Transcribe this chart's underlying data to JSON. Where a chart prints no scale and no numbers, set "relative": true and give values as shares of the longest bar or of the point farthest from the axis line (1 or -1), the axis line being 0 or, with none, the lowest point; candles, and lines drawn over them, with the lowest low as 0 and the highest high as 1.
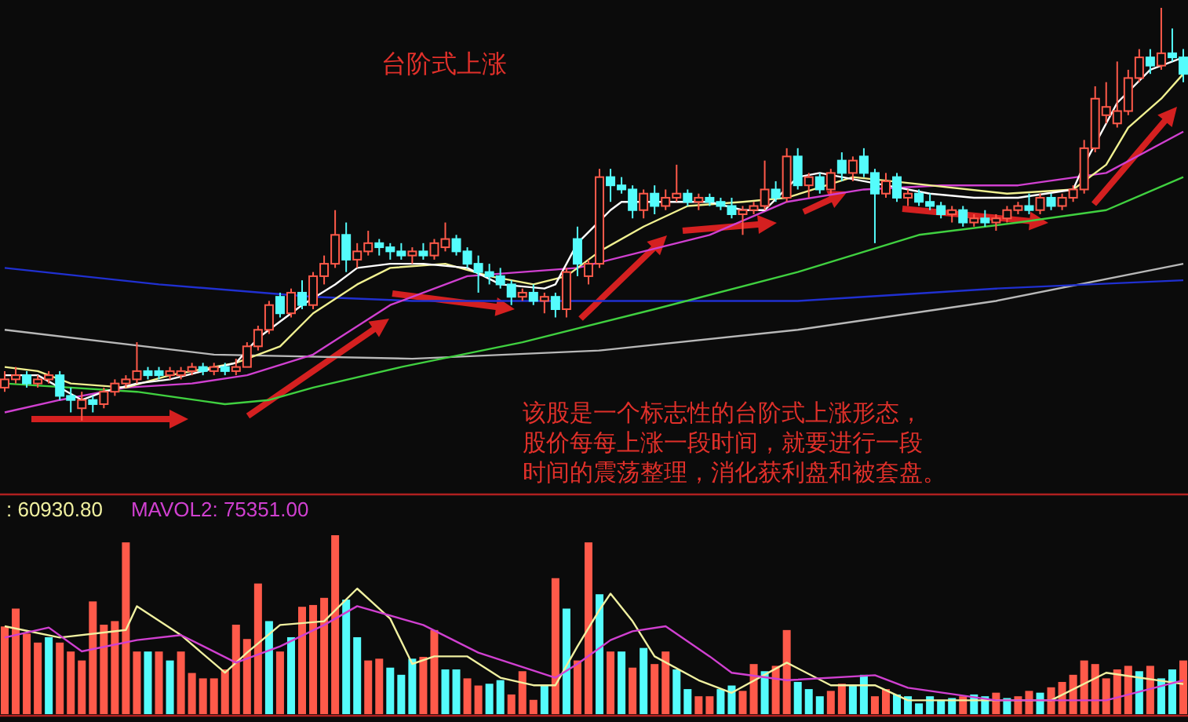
{
  "chart_data": [
    {
      "type": "candlestick",
      "title": "台阶式上涨",
      "relative": true,
      "annotations": [
        "该股是一个标志性的台阶式上涨形态，股价每每上涨一段时间，就要进行一段时间的震荡整理，消化获利盘和被套盘。"
      ],
      "categories": [
        null,
        null,
        null,
        null,
        null,
        null,
        null,
        null,
        null,
        null,
        null,
        null,
        null,
        null,
        null,
        null,
        null,
        null,
        null,
        null,
        null,
        null,
        null,
        null,
        null,
        null,
        null,
        null,
        null,
        null,
        null,
        null,
        null,
        null,
        null,
        null,
        null,
        null,
        null,
        null,
        null,
        null,
        null,
        null,
        null,
        null,
        null,
        null,
        null,
        null,
        null,
        null,
        null,
        null,
        null,
        null,
        null,
        null,
        null,
        null,
        null,
        null,
        null,
        null,
        null,
        null,
        null,
        null,
        null,
        null,
        null,
        null,
        null,
        null,
        null,
        null,
        null,
        null,
        null,
        null,
        null,
        null,
        null,
        null,
        null,
        null,
        null,
        null,
        null,
        null,
        null,
        null,
        null,
        null,
        null,
        null,
        null,
        null,
        null,
        null,
        null,
        null,
        null,
        null,
        null,
        null,
        null,
        null
      ],
      "ohlc": [
        [
          0.08,
          0.12,
          0.07,
          0.1
        ],
        [
          0.1,
          0.13,
          0.09,
          0.11
        ],
        [
          0.11,
          0.12,
          0.08,
          0.09
        ],
        [
          0.09,
          0.11,
          0.08,
          0.1
        ],
        [
          0.1,
          0.12,
          0.09,
          0.11
        ],
        [
          0.11,
          0.12,
          0.05,
          0.06
        ],
        [
          0.06,
          0.08,
          0.02,
          0.05
        ],
        [
          0.03,
          0.07,
          0.0,
          0.05
        ],
        [
          0.05,
          0.06,
          0.02,
          0.04
        ],
        [
          0.04,
          0.08,
          0.03,
          0.07
        ],
        [
          0.07,
          0.1,
          0.06,
          0.09
        ],
        [
          0.09,
          0.11,
          0.08,
          0.1
        ],
        [
          0.1,
          0.19,
          0.09,
          0.12
        ],
        [
          0.12,
          0.13,
          0.1,
          0.11
        ],
        [
          0.12,
          0.13,
          0.1,
          0.11
        ],
        [
          0.11,
          0.13,
          0.1,
          0.12
        ],
        [
          0.11,
          0.13,
          0.1,
          0.12
        ],
        [
          0.12,
          0.14,
          0.11,
          0.13
        ],
        [
          0.13,
          0.14,
          0.11,
          0.12
        ],
        [
          0.12,
          0.14,
          0.11,
          0.13
        ],
        [
          0.13,
          0.14,
          0.11,
          0.12
        ],
        [
          0.12,
          0.15,
          0.11,
          0.13
        ],
        [
          0.13,
          0.19,
          0.13,
          0.18
        ],
        [
          0.18,
          0.23,
          0.17,
          0.22
        ],
        [
          0.22,
          0.29,
          0.21,
          0.28
        ],
        [
          0.3,
          0.31,
          0.25,
          0.26
        ],
        [
          0.26,
          0.32,
          0.25,
          0.31
        ],
        [
          0.31,
          0.34,
          0.27,
          0.28
        ],
        [
          0.28,
          0.36,
          0.27,
          0.35
        ],
        [
          0.35,
          0.4,
          0.33,
          0.38
        ],
        [
          0.38,
          0.51,
          0.37,
          0.45
        ],
        [
          0.45,
          0.48,
          0.36,
          0.39
        ],
        [
          0.39,
          0.43,
          0.37,
          0.41
        ],
        [
          0.41,
          0.46,
          0.4,
          0.43
        ],
        [
          0.43,
          0.44,
          0.4,
          0.42
        ],
        [
          0.42,
          0.43,
          0.39,
          0.41
        ],
        [
          0.41,
          0.43,
          0.39,
          0.4
        ],
        [
          0.4,
          0.42,
          0.38,
          0.41
        ],
        [
          0.41,
          0.43,
          0.39,
          0.4
        ],
        [
          0.4,
          0.44,
          0.39,
          0.43
        ],
        [
          0.42,
          0.48,
          0.41,
          0.44
        ],
        [
          0.44,
          0.45,
          0.4,
          0.41
        ],
        [
          0.41,
          0.42,
          0.37,
          0.38
        ],
        [
          0.38,
          0.4,
          0.31,
          0.36
        ],
        [
          0.36,
          0.38,
          0.33,
          0.35
        ],
        [
          0.35,
          0.37,
          0.32,
          0.33
        ],
        [
          0.33,
          0.34,
          0.28,
          0.3
        ],
        [
          0.3,
          0.32,
          0.29,
          0.31
        ],
        [
          0.31,
          0.33,
          0.28,
          0.29
        ],
        [
          0.29,
          0.31,
          0.26,
          0.3
        ],
        [
          0.3,
          0.31,
          0.25,
          0.27
        ],
        [
          0.27,
          0.37,
          0.25,
          0.36
        ],
        [
          0.44,
          0.47,
          0.35,
          0.38
        ],
        [
          0.35,
          0.39,
          0.33,
          0.38
        ],
        [
          0.38,
          0.61,
          0.37,
          0.59
        ],
        [
          0.59,
          0.61,
          0.53,
          0.57
        ],
        [
          0.57,
          0.59,
          0.55,
          0.56
        ],
        [
          0.56,
          0.57,
          0.49,
          0.51
        ],
        [
          0.51,
          0.56,
          0.49,
          0.55
        ],
        [
          0.55,
          0.57,
          0.5,
          0.52
        ],
        [
          0.52,
          0.56,
          0.51,
          0.54
        ],
        [
          0.54,
          0.62,
          0.53,
          0.55
        ],
        [
          0.55,
          0.56,
          0.52,
          0.53
        ],
        [
          0.53,
          0.55,
          0.51,
          0.54
        ],
        [
          0.54,
          0.55,
          0.52,
          0.53
        ],
        [
          0.53,
          0.54,
          0.51,
          0.52
        ],
        [
          0.52,
          0.54,
          0.49,
          0.5
        ],
        [
          0.5,
          0.52,
          0.45,
          0.51
        ],
        [
          0.51,
          0.53,
          0.5,
          0.52
        ],
        [
          0.52,
          0.63,
          0.51,
          0.56
        ],
        [
          0.56,
          0.58,
          0.53,
          0.54
        ],
        [
          0.54,
          0.66,
          0.53,
          0.64
        ],
        [
          0.64,
          0.66,
          0.56,
          0.57
        ],
        [
          0.57,
          0.6,
          0.54,
          0.59
        ],
        [
          0.59,
          0.6,
          0.55,
          0.56
        ],
        [
          0.56,
          0.61,
          0.55,
          0.6
        ],
        [
          0.63,
          0.65,
          0.58,
          0.6
        ],
        [
          0.6,
          0.64,
          0.58,
          0.63
        ],
        [
          0.64,
          0.66,
          0.59,
          0.6
        ],
        [
          0.6,
          0.61,
          0.43,
          0.55
        ],
        [
          0.55,
          0.6,
          0.54,
          0.58
        ],
        [
          0.59,
          0.6,
          0.53,
          0.54
        ],
        [
          0.54,
          0.56,
          0.52,
          0.55
        ],
        [
          0.55,
          0.56,
          0.52,
          0.53
        ],
        [
          0.53,
          0.55,
          0.51,
          0.52
        ],
        [
          0.52,
          0.53,
          0.49,
          0.5
        ],
        [
          0.5,
          0.52,
          0.48,
          0.51
        ],
        [
          0.51,
          0.52,
          0.47,
          0.48
        ],
        [
          0.48,
          0.5,
          0.47,
          0.49
        ],
        [
          0.49,
          0.51,
          0.47,
          0.48
        ],
        [
          0.48,
          0.5,
          0.46,
          0.49
        ],
        [
          0.49,
          0.52,
          0.48,
          0.51
        ],
        [
          0.51,
          0.53,
          0.5,
          0.52
        ],
        [
          0.52,
          0.55,
          0.5,
          0.51
        ],
        [
          0.51,
          0.55,
          0.5,
          0.54
        ],
        [
          0.54,
          0.55,
          0.51,
          0.52
        ],
        [
          0.52,
          0.55,
          0.51,
          0.54
        ],
        [
          0.54,
          0.57,
          0.53,
          0.56
        ],
        [
          0.56,
          0.68,
          0.55,
          0.66
        ],
        [
          0.66,
          0.81,
          0.65,
          0.78
        ],
        [
          0.74,
          0.82,
          0.72,
          0.76
        ],
        [
          0.72,
          0.87,
          0.71,
          0.75
        ],
        [
          0.75,
          0.85,
          0.74,
          0.83
        ],
        [
          0.83,
          0.9,
          0.82,
          0.88
        ],
        [
          0.88,
          0.9,
          0.84,
          0.86
        ],
        [
          0.86,
          1.0,
          0.85,
          0.89
        ],
        [
          0.89,
          0.95,
          0.87,
          0.88
        ],
        [
          0.88,
          0.9,
          0.82,
          0.84
        ]
      ],
      "colors": [
        "#ff5a4a",
        "#ff5a4a",
        "#54fcfc",
        "#ff5a4a",
        "#ff5a4a",
        "#54fcfc",
        "#54fcfc",
        "#ff5a4a",
        "#54fcfc",
        "#ff5a4a",
        "#ff5a4a",
        "#ff5a4a",
        "#ff5a4a",
        "#54fcfc",
        "#54fcfc",
        "#ff5a4a",
        "#ff5a4a",
        "#ff5a4a",
        "#54fcfc",
        "#ff5a4a",
        "#54fcfc",
        "#ff5a4a",
        "#ff5a4a",
        "#ff5a4a",
        "#ff5a4a",
        "#54fcfc",
        "#ff5a4a",
        "#54fcfc",
        "#ff5a4a",
        "#ff5a4a",
        "#ff5a4a",
        "#54fcfc",
        "#ff5a4a",
        "#ff5a4a",
        "#54fcfc",
        "#54fcfc",
        "#54fcfc",
        "#ff5a4a",
        "#54fcfc",
        "#ff5a4a",
        "#ff5a4a",
        "#54fcfc",
        "#54fcfc",
        "#54fcfc",
        "#54fcfc",
        "#54fcfc",
        "#54fcfc",
        "#ff5a4a",
        "#54fcfc",
        "#ff5a4a",
        "#54fcfc",
        "#ff5a4a",
        "#54fcfc",
        "#ff5a4a",
        "#ff5a4a",
        "#54fcfc",
        "#54fcfc",
        "#54fcfc",
        "#ff5a4a",
        "#54fcfc",
        "#ff5a4a",
        "#ff5a4a",
        "#54fcfc",
        "#ff5a4a",
        "#54fcfc",
        "#54fcfc",
        "#54fcfc",
        "#ff5a4a",
        "#ff5a4a",
        "#ff5a4a",
        "#54fcfc",
        "#ff5a4a",
        "#54fcfc",
        "#ff5a4a",
        "#54fcfc",
        "#ff5a4a",
        "#54fcfc",
        "#ff5a4a",
        "#54fcfc",
        "#54fcfc",
        "#ff5a4a",
        "#54fcfc",
        "#ff5a4a",
        "#54fcfc",
        "#54fcfc",
        "#54fcfc",
        "#ff5a4a",
        "#54fcfc",
        "#ff5a4a",
        "#54fcfc",
        "#ff5a4a",
        "#ff5a4a",
        "#ff5a4a",
        "#54fcfc",
        "#ff5a4a",
        "#54fcfc",
        "#ff5a4a",
        "#ff5a4a",
        "#ff5a4a",
        "#ff5a4a",
        "#ff5a4a",
        "#ff5a4a",
        "#ff5a4a",
        "#ff5a4a",
        "#54fcfc",
        "#ff5a4a",
        "#54fcfc",
        "#54fcfc"
      ],
      "series": [
        {
          "type": "line",
          "color": "#b8b8b8",
          "values": [
            0.22,
            null,
            null,
            null,
            null,
            null,
            null,
            null,
            null,
            null,
            null,
            null,
            null,
            null,
            null,
            null,
            null,
            null,
            null,
            0.16,
            null,
            null,
            null,
            null,
            null,
            null,
            null,
            null,
            null,
            null,
            null,
            null,
            null,
            null,
            null,
            null,
            null,
            0.15,
            null,
            null,
            null,
            null,
            null,
            null,
            null,
            null,
            null,
            null,
            null,
            null,
            null,
            null,
            null,
            null,
            0.17,
            null,
            null,
            null,
            null,
            null,
            null,
            null,
            null,
            null,
            null,
            null,
            null,
            null,
            null,
            null,
            null,
            null,
            0.22,
            null,
            null,
            null,
            null,
            null,
            null,
            null,
            null,
            null,
            null,
            null,
            null,
            null,
            null,
            null,
            null,
            null,
            0.29,
            null,
            null,
            null,
            null,
            null,
            null,
            null,
            null,
            null,
            null,
            null,
            null,
            null,
            null,
            null,
            null,
            0.38
          ]
        },
        {
          "type": "line",
          "color": "#2030d0",
          "values": [
            0.37,
            null,
            null,
            null,
            null,
            null,
            null,
            null,
            null,
            null,
            null,
            null,
            null,
            null,
            0.33,
            null,
            null,
            null,
            null,
            null,
            null,
            null,
            null,
            null,
            null,
            null,
            null,
            null,
            0.3,
            null,
            null,
            null,
            null,
            null,
            null,
            null,
            null,
            0.29,
            null,
            null,
            null,
            null,
            null,
            null,
            null,
            null,
            null,
            null,
            null,
            null,
            null,
            null,
            null,
            null,
            null,
            null,
            null,
            null,
            null,
            null,
            null,
            null,
            null,
            null,
            null,
            null,
            null,
            null,
            null,
            null,
            null,
            null,
            0.29,
            null,
            null,
            null,
            null,
            null,
            null,
            null,
            null,
            null,
            null,
            null,
            null,
            null,
            null,
            null,
            null,
            null,
            0.32,
            null,
            null,
            null,
            null,
            null,
            null,
            null,
            null,
            null,
            null,
            null,
            null,
            null,
            null,
            null,
            null,
            0.34
          ]
        },
        {
          "type": "line",
          "color": "#40d040",
          "values": [
            0.09,
            null,
            null,
            null,
            null,
            null,
            null,
            null,
            null,
            null,
            null,
            null,
            0.07,
            null,
            null,
            null,
            null,
            null,
            null,
            null,
            0.04,
            null,
            null,
            null,
            0.05,
            null,
            null,
            null,
            0.08,
            null,
            null,
            null,
            null,
            null,
            null,
            null,
            0.13,
            null,
            null,
            null,
            null,
            null,
            null,
            null,
            null,
            null,
            null,
            0.19,
            null,
            null,
            null,
            null,
            null,
            null,
            null,
            null,
            null,
            null,
            null,
            0.27,
            null,
            null,
            null,
            null,
            null,
            null,
            null,
            null,
            null,
            null,
            null,
            null,
            0.36,
            null,
            null,
            null,
            null,
            null,
            null,
            null,
            null,
            null,
            null,
            0.45,
            null,
            null,
            null,
            null,
            null,
            null,
            null,
            null,
            0.48,
            null,
            null,
            null,
            null,
            null,
            null,
            null,
            0.51,
            null,
            null,
            null,
            null,
            null,
            null,
            0.59
          ]
        },
        {
          "type": "line",
          "color": "#d040d0",
          "values": [
            0.02,
            null,
            null,
            null,
            null,
            0.05,
            null,
            null,
            null,
            null,
            null,
            0.08,
            null,
            null,
            null,
            null,
            null,
            0.09,
            null,
            null,
            null,
            null,
            0.11,
            null,
            null,
            null,
            null,
            null,
            0.16,
            null,
            null,
            null,
            null,
            null,
            null,
            0.28,
            null,
            null,
            null,
            null,
            null,
            null,
            0.35,
            null,
            null,
            null,
            null,
            0.36,
            null,
            null,
            null,
            null,
            0.37,
            null,
            null,
            null,
            null,
            null,
            0.41,
            null,
            null,
            null,
            null,
            null,
            0.45,
            null,
            null,
            null,
            null,
            null,
            null,
            0.53,
            null,
            null,
            null,
            null,
            null,
            null,
            0.56,
            null,
            null,
            null,
            null,
            null,
            null,
            0.57,
            null,
            null,
            null,
            null,
            null,
            null,
            0.57,
            null,
            null,
            null,
            null,
            null,
            null,
            null,
            0.6,
            null,
            null,
            null,
            null,
            null,
            null,
            0.7
          ]
        },
        {
          "type": "line",
          "color": "#f0f090",
          "values": [
            0.13,
            null,
            null,
            0.12,
            null,
            null,
            0.09,
            null,
            null,
            null,
            null,
            0.08,
            null,
            null,
            null,
            0.11,
            null,
            null,
            null,
            null,
            null,
            0.14,
            null,
            null,
            null,
            0.18,
            null,
            null,
            0.26,
            null,
            null,
            null,
            0.33,
            null,
            null,
            0.37,
            null,
            null,
            null,
            null,
            0.38,
            null,
            null,
            null,
            0.35,
            null,
            null,
            null,
            0.33,
            null,
            null,
            0.35,
            null,
            null,
            0.41,
            null,
            null,
            null,
            0.47,
            null,
            null,
            null,
            0.52,
            null,
            null,
            null,
            null,
            0.53,
            null,
            null,
            null,
            0.54,
            null,
            null,
            null,
            null,
            null,
            0.59,
            null,
            null,
            null,
            null,
            null,
            null,
            0.57,
            null,
            null,
            null,
            null,
            null,
            null,
            0.55,
            null,
            null,
            null,
            null,
            null,
            0.56,
            null,
            null,
            0.62,
            null,
            0.71,
            null,
            null,
            0.78,
            null,
            0.84
          ]
        },
        {
          "type": "line",
          "color": "#ffffff",
          "values": [
            0.11,
            null,
            null,
            0.11,
            null,
            null,
            null,
            0.05,
            null,
            0.07,
            null,
            null,
            0.09,
            null,
            null,
            0.1,
            null,
            null,
            null,
            null,
            null,
            0.14,
            null,
            0.2,
            null,
            null,
            null,
            0.28,
            null,
            null,
            0.33,
            null,
            0.37,
            null,
            null,
            0.38,
            null,
            null,
            0.38,
            null,
            null,
            null,
            0.37,
            null,
            null,
            0.33,
            null,
            null,
            null,
            0.32,
            0.33,
            null,
            0.43,
            null,
            null,
            0.51,
            0.53,
            null,
            null,
            null,
            0.53,
            null,
            null,
            null,
            0.53,
            null,
            null,
            0.51,
            null,
            0.51,
            null,
            null,
            0.59,
            null,
            0.6,
            null,
            0.59,
            null,
            null,
            null,
            0.57,
            null,
            null,
            null,
            0.55,
            null,
            null,
            null,
            0.54,
            null,
            null,
            null,
            0.54,
            null,
            null,
            null,
            null,
            0.56,
            0.62,
            null,
            null,
            0.77,
            null,
            null,
            0.85,
            null,
            null,
            0.88
          ]
        }
      ]
    },
    {
      "type": "bar",
      "relative": true,
      "categories": [
        null,
        null,
        null,
        null,
        null,
        null,
        null,
        null,
        null,
        null,
        null,
        null,
        null,
        null,
        null,
        null,
        null,
        null,
        null,
        null,
        null,
        null,
        null,
        null,
        null,
        null,
        null,
        null,
        null,
        null,
        null,
        null,
        null,
        null,
        null,
        null,
        null,
        null,
        null,
        null,
        null,
        null,
        null,
        null,
        null,
        null,
        null,
        null,
        null,
        null,
        null,
        null,
        null,
        null,
        null,
        null,
        null,
        null,
        null,
        null,
        null,
        null,
        null,
        null,
        null,
        null,
        null,
        null,
        null,
        null,
        null,
        null,
        null,
        null,
        null,
        null,
        null,
        null,
        null,
        null,
        null,
        null,
        null,
        null,
        null,
        null,
        null,
        null,
        null,
        null,
        null,
        null,
        null,
        null,
        null,
        null,
        null,
        null,
        null,
        null,
        null,
        null,
        null,
        null,
        null,
        null,
        null,
        null
      ],
      "values": [
        0.49,
        0.59,
        0.45,
        0.4,
        0.43,
        0.4,
        0.35,
        0.3,
        0.63,
        0.5,
        0.52,
        0.96,
        0.35,
        0.35,
        0.35,
        0.3,
        0.35,
        0.23,
        0.2,
        0.2,
        0.25,
        0.5,
        0.42,
        0.73,
        0.52,
        0.35,
        0.43,
        0.6,
        0.61,
        0.65,
        1.0,
        0.64,
        0.43,
        0.3,
        0.31,
        0.26,
        0.22,
        0.31,
        0.32,
        0.47,
        0.25,
        0.25,
        0.2,
        0.16,
        0.17,
        0.19,
        0.11,
        0.24,
        0.08,
        0.16,
        0.76,
        0.59,
        0.3,
        0.96,
        0.67,
        0.35,
        0.35,
        0.26,
        0.37,
        0.28,
        0.35,
        0.25,
        0.14,
        0.1,
        0.1,
        0.14,
        0.16,
        0.13,
        0.28,
        0.24,
        0.27,
        0.47,
        0.18,
        0.14,
        0.1,
        0.13,
        0.17,
        0.16,
        0.22,
        0.1,
        0.14,
        0.11,
        0.1,
        0.06,
        0.1,
        0.08,
        0.09,
        0.1,
        0.11,
        0.1,
        0.12,
        0.09,
        0.1,
        0.13,
        0.12,
        0.15,
        0.18,
        0.22,
        0.3,
        0.28,
        0.2,
        0.25,
        0.27,
        0.24,
        0.27,
        0.2,
        0.25,
        0.3
      ],
      "colors": [
        "#ff5a4a",
        "#ff5a4a",
        "#ff5a4a",
        "#ff5a4a",
        "#54fcfc",
        "#ff5a4a",
        "#ff5a4a",
        "#ff5a4a",
        "#ff5a4a",
        "#ff5a4a",
        "#ff5a4a",
        "#ff5a4a",
        "#ff5a4a",
        "#54fcfc",
        "#ff5a4a",
        "#54fcfc",
        "#ff5a4a",
        "#ff5a4a",
        "#ff5a4a",
        "#ff5a4a",
        "#ff5a4a",
        "#ff5a4a",
        "#ff5a4a",
        "#ff5a4a",
        "#54fcfc",
        "#ff5a4a",
        "#54fcfc",
        "#ff5a4a",
        "#ff5a4a",
        "#ff5a4a",
        "#ff5a4a",
        "#54fcfc",
        "#54fcfc",
        "#ff5a4a",
        "#ff5a4a",
        "#54fcfc",
        "#54fcfc",
        "#54fcfc",
        "#ff5a4a",
        "#ff5a4a",
        "#54fcfc",
        "#54fcfc",
        "#ff5a4a",
        "#ff5a4a",
        "#54fcfc",
        "#54fcfc",
        "#ff5a4a",
        "#ff5a4a",
        "#ff5a4a",
        "#54fcfc",
        "#ff5a4a",
        "#54fcfc",
        "#ff5a4a",
        "#ff5a4a",
        "#54fcfc",
        "#ff5a4a",
        "#54fcfc",
        "#ff5a4a",
        "#54fcfc",
        "#ff5a4a",
        "#ff5a4a",
        "#54fcfc",
        "#54fcfc",
        "#ff5a4a",
        "#ff5a4a",
        "#54fcfc",
        "#54fcfc",
        "#ff5a4a",
        "#ff5a4a",
        "#54fcfc",
        "#ff5a4a",
        "#ff5a4a",
        "#54fcfc",
        "#54fcfc",
        "#54fcfc",
        "#ff5a4a",
        "#ff5a4a",
        "#54fcfc",
        "#54fcfc",
        "#ff5a4a",
        "#ff5a4a",
        "#54fcfc",
        "#54fcfc",
        "#54fcfc",
        "#54fcfc",
        "#54fcfc",
        "#54fcfc",
        "#ff5a4a",
        "#54fcfc",
        "#54fcfc",
        "#ff5a4a",
        "#54fcfc",
        "#ff5a4a",
        "#ff5a4a",
        "#54fcfc",
        "#ff5a4a",
        "#ff5a4a",
        "#ff5a4a",
        "#ff5a4a",
        "#ff5a4a",
        "#ff5a4a",
        "#ff5a4a",
        "#ff5a4a",
        "#54fcfc",
        "#ff5a4a",
        "#54fcfc",
        "#54fcfc",
        "#ff5a4a"
      ]
    },
    {
      "type": "line",
      "relative": true,
      "categories": [
        null,
        null,
        null,
        null,
        null,
        null,
        null,
        null,
        null,
        null,
        null,
        null,
        null,
        null,
        null,
        null,
        null,
        null,
        null,
        null,
        null,
        null,
        null,
        null,
        null,
        null,
        null,
        null,
        null,
        null,
        null,
        null,
        null,
        null,
        null,
        null,
        null,
        null,
        null,
        null,
        null,
        null,
        null,
        null,
        null,
        null,
        null,
        null,
        null,
        null,
        null,
        null,
        null,
        null,
        null,
        null,
        null,
        null,
        null,
        null,
        null,
        null,
        null,
        null,
        null,
        null,
        null,
        null,
        null,
        null,
        null,
        null,
        null,
        null,
        null,
        null,
        null,
        null,
        null,
        null,
        null,
        null,
        null,
        null,
        null,
        null,
        null,
        null,
        null,
        null,
        null,
        null,
        null,
        null,
        null,
        null,
        null,
        null,
        null,
        null,
        null,
        null,
        null,
        null,
        null,
        null,
        null,
        null
      ],
      "series": [
        {
          "name": ": 60930.80",
          "color": "#f0f0a0",
          "values": [
            0.7,
            null,
            null,
            null,
            null,
            0.61,
            null,
            null,
            null,
            null,
            null,
            0.67,
            0.86,
            null,
            null,
            null,
            0.63,
            null,
            null,
            null,
            0.33,
            null,
            0.49,
            null,
            null,
            0.71,
            null,
            null,
            null,
            0.74,
            null,
            null,
            1.0,
            null,
            null,
            0.76,
            null,
            0.4,
            null,
            0.46,
            null,
            null,
            0.46,
            null,
            null,
            0.29,
            null,
            null,
            0.23,
            null,
            0.23,
            null,
            0.54,
            null,
            0.83,
            0.96,
            null,
            0.74,
            null,
            0.46,
            null,
            null,
            null,
            0.27,
            null,
            null,
            0.17,
            null,
            null,
            null,
            null,
            0.41,
            null,
            null,
            null,
            0.23,
            null,
            null,
            null,
            0.23,
            null,
            null,
            0.11,
            null,
            null,
            null,
            null,
            null,
            null,
            null,
            null,
            null,
            null,
            null,
            null,
            0.11,
            null,
            null,
            null,
            null,
            0.33,
            null,
            null,
            null,
            null,
            null,
            null,
            0.24
          ]
        },
        {
          "name": "MAVOL2: 75351.00",
          "color": "#d040d0",
          "values": [
            0.61,
            null,
            null,
            null,
            0.69,
            null,
            null,
            0.5,
            null,
            null,
            null,
            null,
            0.59,
            null,
            null,
            null,
            0.63,
            null,
            null,
            null,
            null,
            0.41,
            null,
            null,
            null,
            0.54,
            null,
            null,
            null,
            0.71,
            null,
            null,
            0.86,
            null,
            null,
            null,
            null,
            null,
            0.71,
            null,
            null,
            null,
            null,
            0.49,
            null,
            null,
            null,
            null,
            null,
            null,
            0.29,
            null,
            0.4,
            null,
            null,
            0.59,
            null,
            0.66,
            null,
            null,
            0.7,
            null,
            null,
            null,
            0.46,
            null,
            0.33,
            null,
            null,
            null,
            null,
            0.27,
            null,
            null,
            null,
            null,
            null,
            null,
            null,
            0.31,
            null,
            null,
            0.21,
            null,
            null,
            null,
            null,
            null,
            null,
            null,
            0.11,
            null,
            null,
            null,
            null,
            null,
            null,
            null,
            null,
            null,
            0.11,
            null,
            null,
            null,
            null,
            null,
            null,
            0.27
          ]
        }
      ]
    }
  ]
}
